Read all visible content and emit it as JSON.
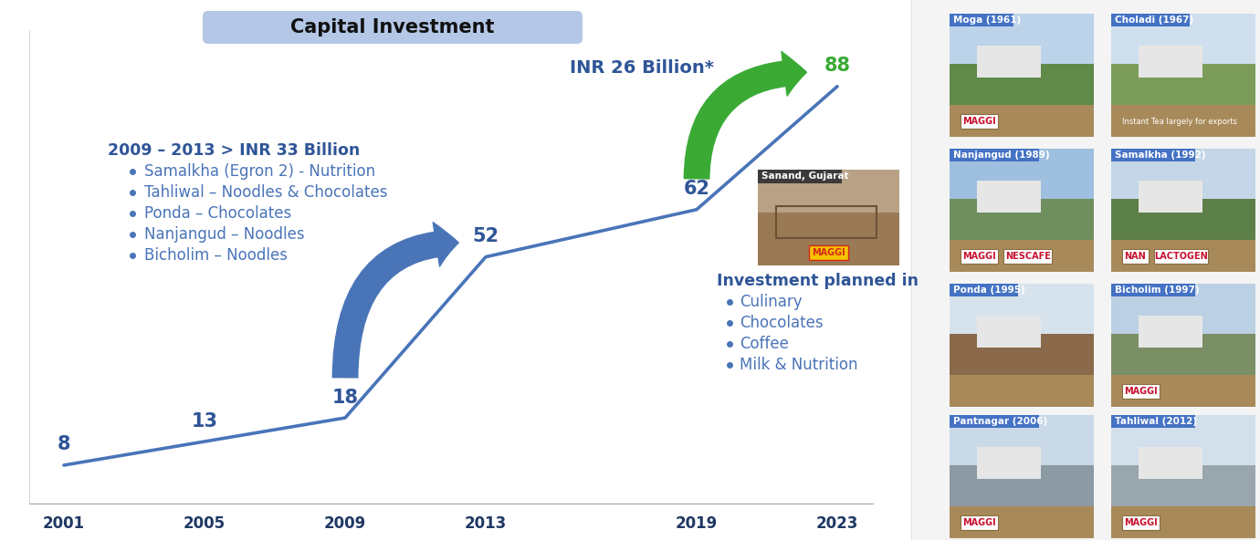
{
  "chart_data": {
    "type": "line",
    "title": "Capital Investment",
    "x": [
      2001,
      2005,
      2009,
      2013,
      2019,
      2023
    ],
    "values": [
      8,
      13,
      18,
      52,
      62,
      88
    ],
    "color": "#4a74b8",
    "xlim": [
      2000,
      2024
    ],
    "xticks": [
      2001,
      2005,
      2009,
      2013,
      2019,
      2023
    ],
    "ylim": [
      0,
      100
    ],
    "tick_labels": "x",
    "data_labels": true,
    "grid": false,
    "annotations": {
      "period": {
        "text": "2009 – 2013 > INR 33 Billion",
        "items": [
          "Samalkha (Egron 2) - Nutrition",
          "Tahliwal – Noodles & Chocolates",
          "Ponda – Chocolates",
          "Nanjangud – Noodles",
          "Bicholim – Noodles"
        ]
      },
      "growth": "INR 26 Billion*",
      "site": {
        "text": "Sanand, Gujarat",
        "brands": [
          "MAGGI"
        ]
      },
      "planned": {
        "text": "Investment planned in",
        "items": [
          "Culinary",
          "Chocolates",
          "Coffee",
          "Milk & Nutrition"
        ]
      }
    }
  },
  "plants": [
    {
      "name": "Moga (1961)",
      "brands": [
        "MAGGI"
      ]
    },
    {
      "name": "Choladi (1967)",
      "brands": [],
      "note": "Instant Tea largely for exports"
    },
    {
      "name": "Nanjangud (1989)",
      "brands": [
        "MAGGI",
        "NESCAFE"
      ]
    },
    {
      "name": "Samalkha (1992)",
      "brands": [
        "NAN",
        "LACTOGEN"
      ]
    },
    {
      "name": "Ponda (1995)",
      "brands": []
    },
    {
      "name": "Bicholim (1997)",
      "brands": [
        "MAGGI"
      ]
    },
    {
      "name": "Pantnagar (2006)",
      "brands": [
        "MAGGI"
      ]
    },
    {
      "name": "Tahliwal (2012)",
      "brands": [
        "MAGGI"
      ]
    }
  ]
}
